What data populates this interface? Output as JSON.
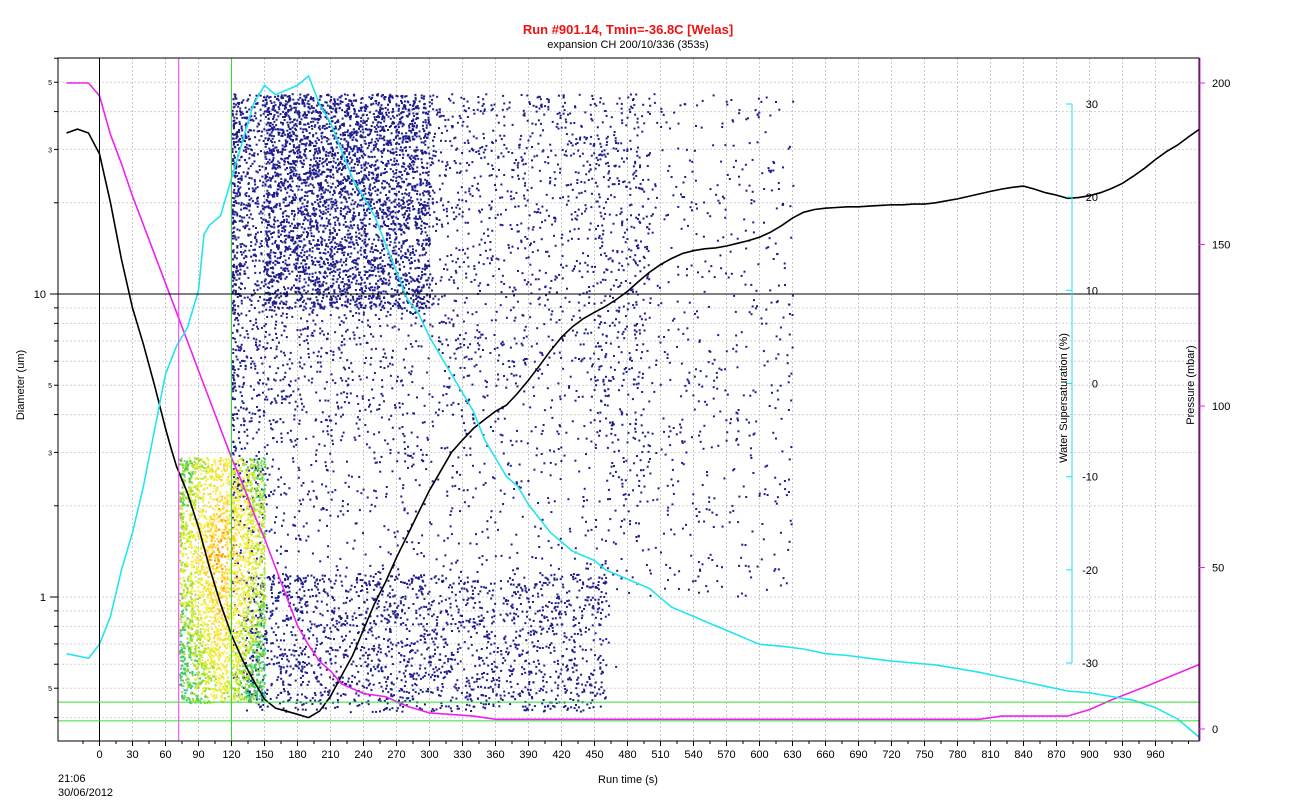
{
  "chart_data": {
    "type": "scatter",
    "title": "Run #901.14, Tmin=-36.8C [Welas]",
    "subtitle": "expansion CH 200/10/336  (353s)",
    "xlabel": "Run time (s)",
    "ylabel_left": "Diameter (um)",
    "ylabel_right_inner": "Water Supersaturation (%)",
    "ylabel_right_outer": "Pressure (mbar)",
    "date_label": [
      "21:06",
      "30/06/2012"
    ],
    "x_range": [
      -30,
      1000
    ],
    "x_ticks": [
      "0",
      "30",
      "60",
      "90",
      "120",
      "150",
      "180",
      "210",
      "240",
      "270",
      "300",
      "330",
      "360",
      "390",
      "420",
      "450",
      "480",
      "510",
      "540",
      "570",
      "600",
      "630",
      "660",
      "690",
      "720",
      "750",
      "780",
      "810",
      "840",
      "870",
      "900",
      "930",
      "960"
    ],
    "y_left_range": [
      0.35,
      6
    ],
    "y_left_log": true,
    "y_left_ticks_major": [
      "10",
      "1"
    ],
    "y_left_ticks_minor": [
      "5",
      "3",
      "5",
      "3",
      "5"
    ],
    "y_left_minor_values": [
      50,
      30,
      5,
      3,
      0.5
    ],
    "supersat_range": [
      -30,
      30
    ],
    "supersat_ticks": [
      "30",
      "20",
      "10",
      "0",
      "-10",
      "-20",
      "-30"
    ],
    "pressure_range": [
      0,
      200
    ],
    "pressure_ticks": [
      "200",
      "150",
      "100",
      "50",
      "0"
    ],
    "markers": {
      "vertical": [
        {
          "x": 0,
          "color": "#000000"
        },
        {
          "x": 72,
          "color": "#ff33ff"
        },
        {
          "x": 120,
          "color": "#33dd33"
        }
      ],
      "horizontal": [
        {
          "y": 10,
          "color": "#000000"
        },
        {
          "y": 0.45,
          "color": "#33dd33"
        },
        {
          "y": 0.39,
          "color": "#33dd33"
        }
      ]
    },
    "colors": {
      "temperature": "#000000",
      "pressure": "#ee22ee",
      "supersaturation": "#22e5ee",
      "particles": "#1c1c8c",
      "title": "#ee1111"
    },
    "series": [
      {
        "id": "temperature",
        "axis": "diameter",
        "x": [
          -30,
          -20,
          -10,
          0,
          10,
          20,
          30,
          40,
          50,
          60,
          65,
          70,
          80,
          90,
          100,
          110,
          120,
          130,
          140,
          150,
          160,
          170,
          180,
          190,
          200,
          210,
          220,
          230,
          240,
          250,
          260,
          270,
          280,
          290,
          300,
          310,
          320,
          330,
          340,
          350,
          360,
          370,
          380,
          390,
          400,
          410,
          420,
          430,
          440,
          450,
          460,
          470,
          480,
          490,
          500,
          510,
          520,
          530,
          540,
          550,
          560,
          570,
          580,
          590,
          600,
          610,
          620,
          630,
          640,
          650,
          660,
          670,
          680,
          690,
          700,
          710,
          720,
          730,
          740,
          750,
          760,
          770,
          780,
          790,
          800,
          810,
          820,
          830,
          840,
          850,
          860,
          870,
          880,
          890,
          900,
          910,
          920,
          930,
          940,
          950,
          960,
          970,
          980,
          990,
          1000
        ],
        "y": [
          34,
          35,
          34,
          29,
          20,
          13,
          9,
          6.8,
          5,
          3.6,
          3.1,
          2.7,
          2.2,
          1.7,
          1.25,
          0.95,
          0.75,
          0.62,
          0.53,
          0.46,
          0.43,
          0.42,
          0.41,
          0.4,
          0.42,
          0.47,
          0.55,
          0.64,
          0.78,
          0.95,
          1.12,
          1.35,
          1.6,
          1.9,
          2.25,
          2.6,
          3.0,
          3.3,
          3.6,
          3.85,
          4.1,
          4.3,
          4.7,
          5.2,
          5.8,
          6.5,
          7.2,
          7.8,
          8.3,
          8.7,
          9.1,
          9.6,
          10.2,
          11.0,
          11.8,
          12.5,
          13.1,
          13.6,
          13.9,
          14.1,
          14.2,
          14.4,
          14.7,
          15.0,
          15.4,
          16.0,
          16.8,
          17.8,
          18.6,
          19.0,
          19.2,
          19.3,
          19.4,
          19.4,
          19.5,
          19.6,
          19.7,
          19.7,
          19.8,
          19.8,
          20.0,
          20.3,
          20.6,
          21.0,
          21.4,
          21.8,
          22.2,
          22.5,
          22.7,
          22.2,
          21.6,
          21.2,
          20.7,
          20.8,
          21.1,
          21.6,
          22.3,
          23.2,
          24.5,
          26.0,
          27.8,
          29.5,
          31,
          33,
          35
        ]
      },
      {
        "id": "pressure",
        "axis": "pressure",
        "x": [
          -30,
          -10,
          0,
          10,
          20,
          30,
          40,
          50,
          60,
          70,
          80,
          90,
          100,
          110,
          120,
          130,
          140,
          150,
          160,
          170,
          180,
          190,
          200,
          210,
          220,
          240,
          260,
          280,
          300,
          340,
          360,
          400,
          450,
          500,
          550,
          600,
          650,
          700,
          750,
          800,
          820,
          840,
          880,
          900,
          920,
          950,
          1000
        ],
        "y": [
          200,
          200,
          196,
          184,
          175,
          165,
          156,
          147,
          138,
          129,
          120,
          111,
          102,
          93,
          84,
          76,
          67,
          59,
          50,
          41,
          32,
          26,
          21,
          18,
          14,
          11,
          10,
          7,
          5,
          4,
          3,
          3,
          3,
          3,
          3,
          3,
          3,
          3,
          3,
          3,
          4,
          4,
          4,
          6,
          9,
          13,
          20
        ]
      },
      {
        "id": "supersaturation",
        "axis": "supersat",
        "x": [
          -30,
          -10,
          0,
          10,
          20,
          30,
          40,
          50,
          60,
          70,
          80,
          90,
          95,
          100,
          110,
          120,
          130,
          140,
          150,
          160,
          170,
          180,
          190,
          200,
          210,
          220,
          230,
          240,
          250,
          260,
          270,
          280,
          290,
          300,
          310,
          320,
          330,
          340,
          350,
          360,
          370,
          380,
          390,
          400,
          410,
          420,
          430,
          440,
          450,
          460,
          470,
          480,
          490,
          500,
          510,
          520,
          530,
          540,
          550,
          560,
          570,
          580,
          590,
          600,
          620,
          640,
          660,
          680,
          700,
          720,
          740,
          760,
          780,
          800,
          820,
          840,
          860,
          880,
          900,
          920,
          940,
          960,
          980,
          1000
        ],
        "y": [
          -29,
          -29.5,
          -28,
          -25,
          -20,
          -16,
          -11,
          -5,
          1,
          4,
          6,
          10,
          16,
          17,
          18,
          22,
          26,
          30,
          32,
          31,
          31.5,
          32,
          33,
          30,
          28,
          25,
          22,
          20,
          18,
          15,
          12,
          9,
          7.5,
          5,
          3,
          1,
          -1,
          -3,
          -6,
          -8,
          -10,
          -11,
          -13,
          -14.5,
          -16,
          -17,
          -18,
          -18.5,
          -19,
          -20,
          -20.5,
          -21,
          -21.5,
          -22,
          -23,
          -24,
          -24.5,
          -25,
          -25.5,
          -26,
          -26.5,
          -27,
          -27.5,
          -28,
          -28.2,
          -28.5,
          -29,
          -29.2,
          -29.5,
          -29.8,
          -30,
          -30.2,
          -30.6,
          -31,
          -31.5,
          -32,
          -32.5,
          -33,
          -33.2,
          -33.6,
          -34,
          -34.8,
          -36,
          -38
        ]
      }
    ]
  }
}
